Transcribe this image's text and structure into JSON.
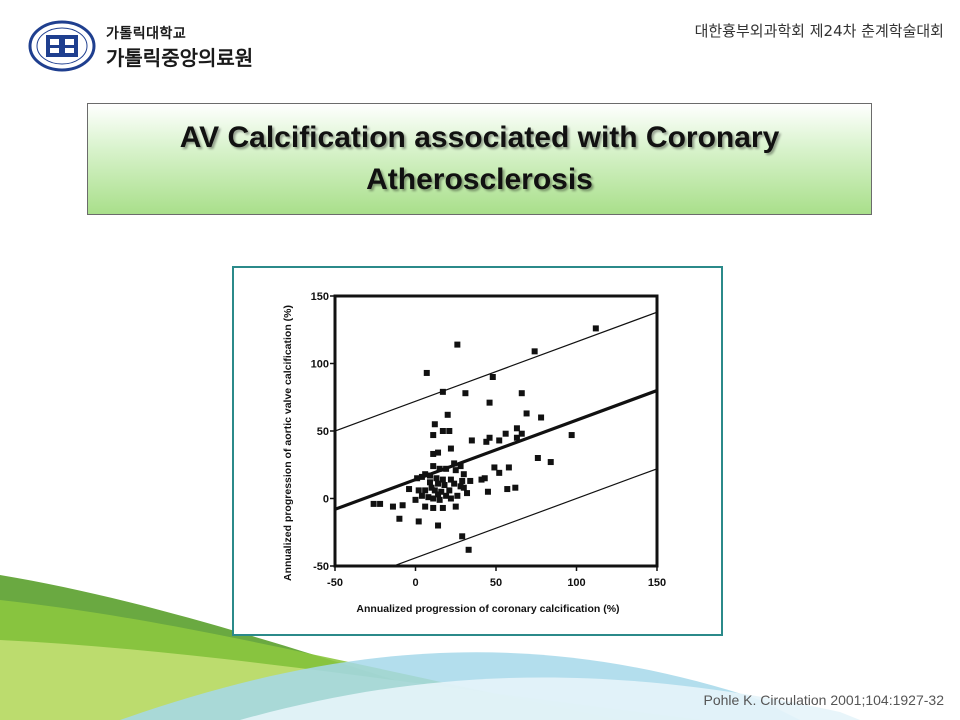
{
  "header": {
    "logo_line1": "가톨릭대학교",
    "logo_line2": "가톨릭중앙의료원",
    "logo_ring_text": "CATHOLIC UNIVERSITY OF KOREA",
    "conference": "대한흉부외과학회 제24차 춘계학술대회"
  },
  "slide": {
    "title_line1": "AV Calcification associated with Coronary",
    "title_line2": "Atherosclerosis",
    "citation": "Pohle K. Circulation 2001;104:1927-32"
  },
  "colors": {
    "title_gradient_bottom": "#a9df8b",
    "frame_border": "#2b8a8a",
    "logo_blue": "#1f3f8f",
    "wave_green": "#8cc63f",
    "wave_blue": "#a6d8ea"
  },
  "chart_data": {
    "type": "scatter",
    "title": "",
    "xlabel": "Annualized progression of coronary calcification (%)",
    "ylabel": "Annualized progression of aortic valve calcification (%)",
    "xlim": [
      -50,
      150
    ],
    "ylim": [
      -50,
      150
    ],
    "xticks": [
      -50,
      0,
      50,
      100,
      150
    ],
    "yticks": [
      -50,
      0,
      50,
      100,
      150
    ],
    "xtick_labels": [
      "-50",
      "0",
      "50",
      "100",
      "150"
    ],
    "ytick_labels": [
      "-50",
      "0",
      "50",
      "100",
      "150"
    ],
    "regression_line": {
      "x": [
        -50,
        150
      ],
      "y": [
        -8,
        80
      ]
    },
    "confidence_bands": [
      {
        "x": [
          -50,
          150
        ],
        "y": [
          50,
          138
        ]
      },
      {
        "x": [
          -50,
          150
        ],
        "y": [
          -66,
          22
        ]
      }
    ],
    "points": [
      [
        112,
        126
      ],
      [
        26,
        114
      ],
      [
        74,
        109
      ],
      [
        7,
        93
      ],
      [
        48,
        90
      ],
      [
        17,
        79
      ],
      [
        31,
        78
      ],
      [
        66,
        78
      ],
      [
        46,
        71
      ],
      [
        69,
        63
      ],
      [
        78,
        60
      ],
      [
        20,
        62
      ],
      [
        12,
        55
      ],
      [
        17,
        50
      ],
      [
        21,
        50
      ],
      [
        63,
        52
      ],
      [
        56,
        48
      ],
      [
        66,
        48
      ],
      [
        97,
        47
      ],
      [
        11,
        47
      ],
      [
        35,
        43
      ],
      [
        44,
        42
      ],
      [
        46,
        45
      ],
      [
        52,
        43
      ],
      [
        22,
        37
      ],
      [
        11,
        33
      ],
      [
        14,
        34
      ],
      [
        76,
        30
      ],
      [
        84,
        27
      ],
      [
        24,
        26
      ],
      [
        28,
        24
      ],
      [
        49,
        23
      ],
      [
        11,
        24
      ],
      [
        15,
        22
      ],
      [
        19,
        22
      ],
      [
        25,
        21
      ],
      [
        30,
        18
      ],
      [
        52,
        19
      ],
      [
        6,
        18
      ],
      [
        4,
        16
      ],
      [
        9,
        17
      ],
      [
        13,
        15
      ],
      [
        17,
        14
      ],
      [
        22,
        14
      ],
      [
        29,
        13
      ],
      [
        34,
        13
      ],
      [
        43,
        15
      ],
      [
        1,
        15
      ],
      [
        9,
        12
      ],
      [
        14,
        11
      ],
      [
        18,
        10
      ],
      [
        24,
        11
      ],
      [
        28,
        9
      ],
      [
        10,
        8
      ],
      [
        2,
        6
      ],
      [
        6,
        6
      ],
      [
        12,
        6
      ],
      [
        16,
        5
      ],
      [
        21,
        6
      ],
      [
        30,
        8
      ],
      [
        -4,
        7
      ],
      [
        32,
        4
      ],
      [
        45,
        5
      ],
      [
        62,
        8
      ],
      [
        57,
        7
      ],
      [
        14,
        3
      ],
      [
        19,
        2
      ],
      [
        26,
        2
      ],
      [
        8,
        1
      ],
      [
        4,
        2
      ],
      [
        11,
        0
      ],
      [
        0,
        -1
      ],
      [
        15,
        -1
      ],
      [
        22,
        0
      ],
      [
        -22,
        -4
      ],
      [
        -14,
        -6
      ],
      [
        6,
        -6
      ],
      [
        11,
        -7
      ],
      [
        17,
        -7
      ],
      [
        25,
        -6
      ],
      [
        -10,
        -15
      ],
      [
        2,
        -17
      ],
      [
        -26,
        -4
      ],
      [
        -8,
        -5
      ],
      [
        14,
        -20
      ],
      [
        29,
        -28
      ],
      [
        33,
        -38
      ],
      [
        58,
        23
      ],
      [
        41,
        14
      ],
      [
        63,
        45
      ]
    ]
  }
}
